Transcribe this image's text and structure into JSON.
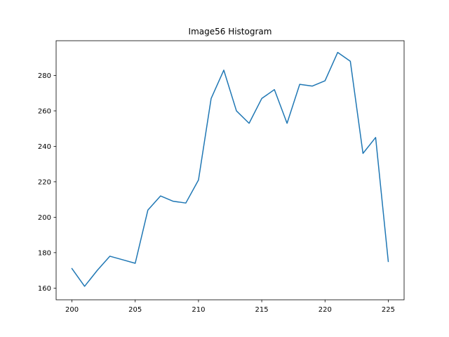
{
  "chart_data": {
    "type": "line",
    "title": "Image56 Histogram",
    "xlabel": "",
    "ylabel": "",
    "x": [
      200,
      201,
      202,
      203,
      204,
      205,
      206,
      207,
      208,
      209,
      210,
      211,
      212,
      213,
      214,
      215,
      216,
      217,
      218,
      219,
      220,
      221,
      222,
      223,
      224,
      225
    ],
    "series": [
      {
        "values": [
          171,
          161,
          170,
          178,
          176,
          174,
          204,
          212,
          209,
          208,
          221,
          267,
          283,
          260,
          253,
          267,
          272,
          253,
          275,
          274,
          277,
          293,
          288,
          236,
          245,
          175
        ],
        "color": "#1f77b4"
      }
    ],
    "xlim": [
      198.75,
      226.25
    ],
    "ylim": [
      153.4,
      299.6
    ],
    "xticks": [
      200,
      205,
      210,
      215,
      220,
      225
    ],
    "yticks": [
      160,
      180,
      200,
      220,
      240,
      260,
      280
    ],
    "grid": false,
    "legend": "none"
  }
}
